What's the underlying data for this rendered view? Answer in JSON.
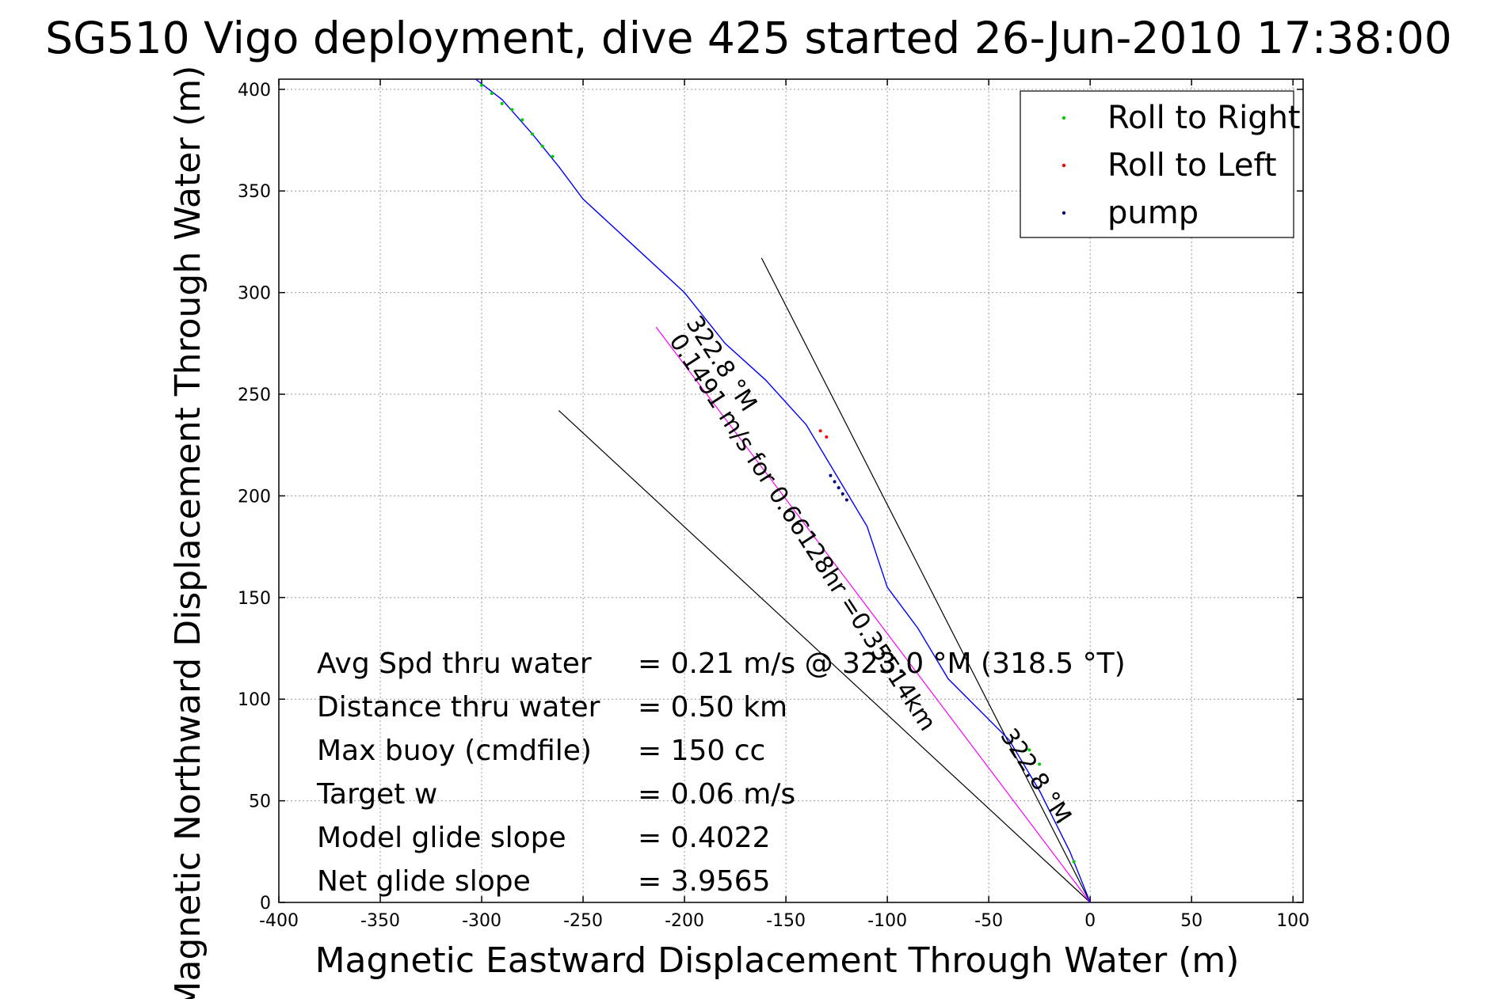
{
  "chart_data": {
    "type": "line",
    "title": "SG510 Vigo deployment, dive 425 started 26-Jun-2010 17:38:00",
    "xlabel": "Magnetic Eastward Displacement Through Water (m)",
    "ylabel": "Magnetic Northward Displacement Through Water (m)",
    "xlim": [
      -400,
      105
    ],
    "ylim": [
      0,
      405
    ],
    "xticks": [
      -400,
      -350,
      -300,
      -250,
      -200,
      -150,
      -100,
      -50,
      0,
      50,
      100
    ],
    "yticks": [
      0,
      50,
      100,
      150,
      200,
      250,
      300,
      350,
      400
    ],
    "grid": true,
    "legend_position": "top-right",
    "series": [
      {
        "name": "Roll to Right",
        "color": "#00cc00",
        "marker": "dot",
        "x": [
          -300,
          -295,
          -290,
          -285,
          -280,
          -275,
          -270,
          -265,
          -30,
          -25,
          -15,
          -8
        ],
        "y": [
          402,
          398,
          393,
          390,
          385,
          378,
          372,
          367,
          75,
          68,
          40,
          20
        ]
      },
      {
        "name": "Roll to Left",
        "color": "#ff0000",
        "marker": "dot",
        "x": [
          -133,
          -130
        ],
        "y": [
          232,
          229
        ]
      },
      {
        "name": "pump",
        "color": "#000080",
        "marker": "dot",
        "x": [
          -128,
          -126,
          -124,
          -122,
          -120
        ],
        "y": [
          210,
          207,
          204,
          201,
          198
        ]
      }
    ],
    "track": {
      "color": "#0000ff",
      "x": [
        -303,
        -290,
        -275,
        -262,
        -250,
        -225,
        -200,
        -180,
        -160,
        -140,
        -125,
        -110,
        -100,
        -85,
        -70,
        -55,
        -40,
        -25,
        -10,
        0
      ],
      "y": [
        405,
        395,
        378,
        362,
        346,
        323,
        300,
        275,
        257,
        235,
        210,
        185,
        155,
        135,
        110,
        95,
        80,
        55,
        25,
        0
      ]
    },
    "lines": [
      {
        "color": "#000000",
        "x": [
          0,
          -162
        ],
        "y": [
          0,
          317
        ]
      },
      {
        "color": "#000000",
        "x": [
          0,
          -262
        ],
        "y": [
          0,
          242
        ]
      },
      {
        "color": "#ff00ff",
        "x": [
          0,
          -214
        ],
        "y": [
          0,
          283
        ]
      }
    ],
    "annotations": [
      {
        "text": "322.8 °M",
        "x": -185,
        "y": 263,
        "angle": 57
      },
      {
        "text": "0.1491 m/s for 0.66128hr =0.35514km",
        "x": -145,
        "y": 180,
        "angle": 57
      },
      {
        "text": "322.8 °M",
        "x": -30,
        "y": 60,
        "angle": 57
      }
    ]
  },
  "legend": {
    "items": [
      {
        "label": "Roll to Right",
        "color": "#00cc00"
      },
      {
        "label": "Roll to Left",
        "color": "#ff0000"
      },
      {
        "label": "pump",
        "color": "#000080"
      }
    ]
  },
  "stats": [
    {
      "label": "Avg Spd thru water",
      "value": "=  0.21 m/s @ 323.0 °M (318.5 °T)"
    },
    {
      "label": "Distance thru water",
      "value": "=  0.50 km"
    },
    {
      "label": "Max buoy (cmdfile)",
      "value": "= 150 cc"
    },
    {
      "label": "Target w",
      "value": "= 0.06 m/s"
    },
    {
      "label": "Model glide slope",
      "value": "= 0.4022"
    },
    {
      "label": "Net glide slope",
      "value": "= 3.9565"
    }
  ]
}
